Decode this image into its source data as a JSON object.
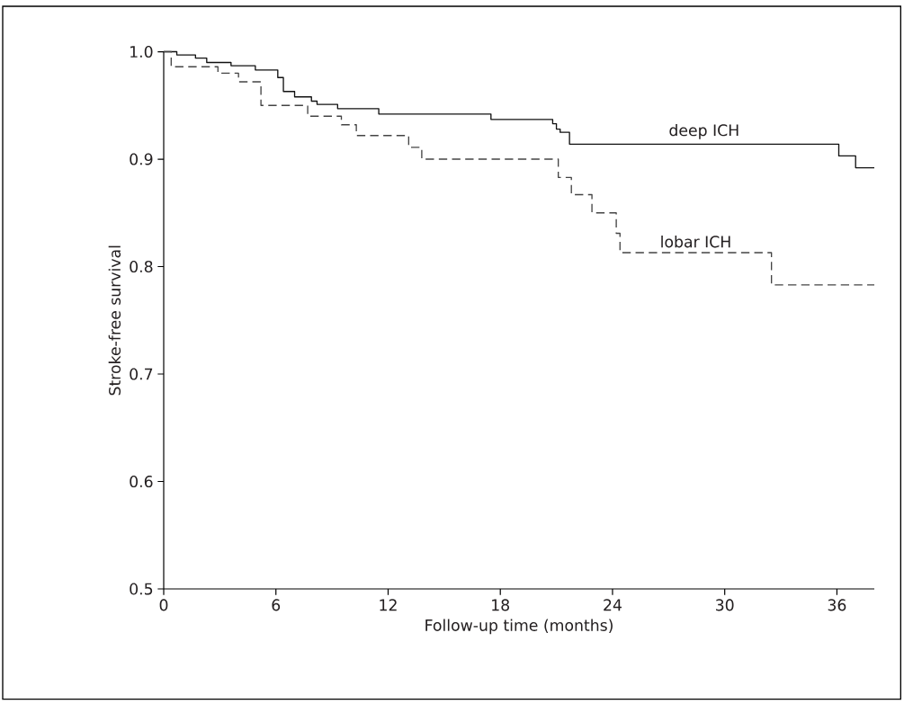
{
  "chart_data": {
    "type": "step",
    "xlabel": "Follow-up time (months)",
    "ylabel": "Stroke-free survival",
    "xlim": [
      0,
      38
    ],
    "ylim": [
      0.5,
      1.0
    ],
    "xticks": [
      0,
      6,
      12,
      18,
      24,
      30,
      36
    ],
    "yticks": [
      {
        "value": 0.5,
        "label": "0.5"
      },
      {
        "value": 0.6,
        "label": "0.6"
      },
      {
        "value": 0.7,
        "label": "0.7"
      },
      {
        "value": 0.8,
        "label": "0.8"
      },
      {
        "value": 0.9,
        "label": "0.9"
      },
      {
        "value": 1.0,
        "label": "1.0"
      }
    ],
    "series": [
      {
        "name": "deep ICH",
        "color": "#111111",
        "line_style": "solid",
        "x": [
          0,
          0.7,
          1.7,
          2.3,
          3.6,
          4.9,
          6.1,
          6.4,
          7.0,
          7.9,
          8.2,
          9.3,
          11.5,
          17.5,
          20.8,
          21.0,
          21.2,
          21.7,
          36.1,
          37.0,
          38
        ],
        "values": [
          1.0,
          0.997,
          0.994,
          0.99,
          0.987,
          0.983,
          0.976,
          0.963,
          0.958,
          0.954,
          0.951,
          0.947,
          0.942,
          0.937,
          0.933,
          0.928,
          0.925,
          0.914,
          0.903,
          0.892,
          0.892
        ]
      },
      {
        "name": "lobar ICH",
        "color": "#444444",
        "line_style": "dashed",
        "x": [
          0,
          0.4,
          2.9,
          4.0,
          5.2,
          7.7,
          9.5,
          10.3,
          13.1,
          13.8,
          21.1,
          21.8,
          22.9,
          24.2,
          24.4,
          32.5,
          38
        ],
        "values": [
          1.0,
          0.986,
          0.98,
          0.972,
          0.95,
          0.94,
          0.932,
          0.922,
          0.911,
          0.9,
          0.883,
          0.867,
          0.85,
          0.831,
          0.813,
          0.783,
          0.783
        ]
      }
    ]
  }
}
